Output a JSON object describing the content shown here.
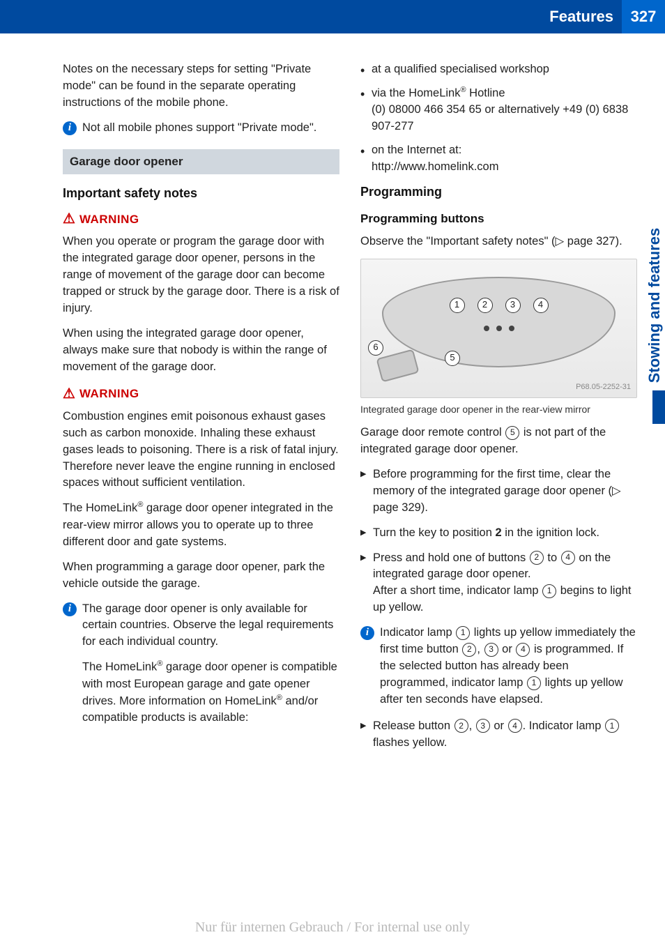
{
  "header": {
    "title": "Features",
    "page": "327"
  },
  "sideTab": "Stowing and features",
  "left": {
    "intro": "Notes on the necessary steps for setting \"Private mode\" can be found in the separate operating instructions of the mobile phone.",
    "note1": "Not all mobile phones support \"Private mode\".",
    "barTitle": "Garage door opener",
    "safetyTitle": "Important safety notes",
    "warnLabel": "WARNING",
    "warn1": "When you operate or program the garage door with the integrated garage door opener, persons in the range of movement of the garage door can become trapped or struck by the garage door. There is a risk of injury.",
    "warn1b": "When using the integrated garage door opener, always make sure that nobody is within the range of movement of the garage door.",
    "warn2": "Combustion engines emit poisonous exhaust gases such as carbon monoxide. Inhaling these exhaust gases leads to poisoning. There is a risk of fatal injury. Therefore never leave the engine running in enclosed spaces without sufficient ventilation.",
    "p1a": "The HomeLink",
    "p1b": " garage door opener integrated in the rear-view mirror allows you to operate up to three different door and gate systems.",
    "p2": "When programming a garage door opener, park the vehicle outside the garage.",
    "note2a": "The garage door opener is only available for certain countries. Observe the legal requirements for each individual country.",
    "note2b_a": "The HomeLink",
    "note2b_b": " garage door opener is compatible with most European garage and gate opener drives. More information on HomeLink",
    "note2b_c": " and/or compatible products is available:"
  },
  "right": {
    "bullets": {
      "b1": "at a qualified specialised workshop",
      "b2a": "via the HomeLink",
      "b2b": " Hotline",
      "b2c": "(0) 08000 466 354 65 or alternatively +49 (0) 6838 907-277",
      "b3a": "on the Internet at:",
      "b3b": "http://www.homelink.com"
    },
    "progTitle": "Programming",
    "progButtons": "Programming buttons",
    "observe": "Observe the \"Important safety notes\" (▷ page 327).",
    "figCode": "P68.05-2252-31",
    "caption": "Integrated garage door opener in the rear-view mirror",
    "remoteText_a": "Garage door remote control ",
    "remoteText_b": " is not part of the integrated garage door opener.",
    "s1": "Before programming for the first time, clear the memory of the integrated garage door opener (▷ page 329).",
    "s2_a": "Turn the key to position ",
    "s2_b": "2",
    "s2_c": " in the ignition lock.",
    "s3_a": "Press and hold one of buttons ",
    "s3_b": " to ",
    "s3_c": " on the integrated garage door opener.",
    "s3_d": "After a short time, indicator lamp ",
    "s3_e": " begins to light up yellow.",
    "note3_a": "Indicator lamp ",
    "note3_b": " lights up yellow immediately the first time button ",
    "note3_c": ", ",
    "note3_d": " or ",
    "note3_e": " is programmed. If the selected button has already been programmed, indicator lamp ",
    "note3_f": " lights up yellow after ten seconds have elapsed.",
    "s4_a": "Release button ",
    "s4_b": ", ",
    "s4_c": " or ",
    "s4_d": ". Indicator lamp ",
    "s4_e": " flashes yellow."
  },
  "watermark": "Nur für internen Gebrauch / For internal use only",
  "colors": {
    "blue": "#004a9f",
    "lightBlue": "#0066cc",
    "red": "#c00",
    "barBg": "#d0d7de"
  }
}
